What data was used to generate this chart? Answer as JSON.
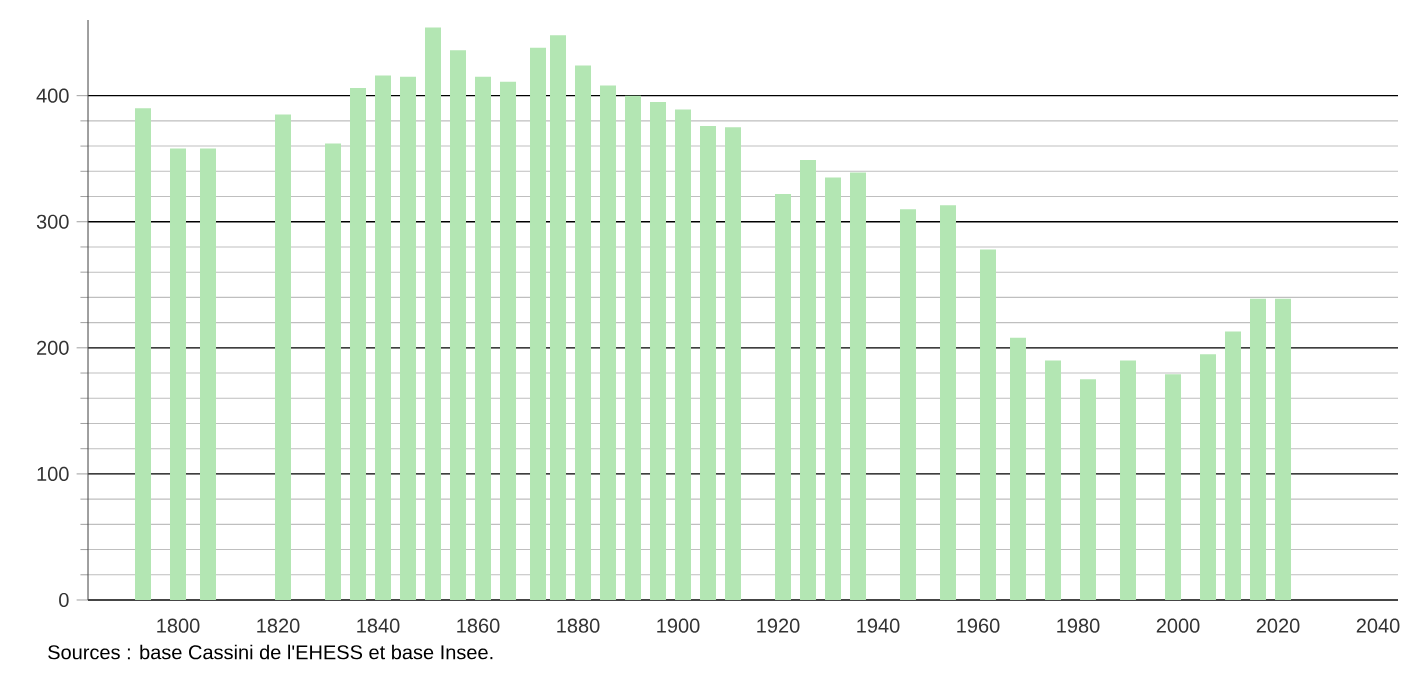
{
  "chart_data": {
    "type": "bar",
    "x": [
      1793,
      1800,
      1806,
      1821,
      1831,
      1836,
      1841,
      1846,
      1851,
      1856,
      1861,
      1866,
      1872,
      1876,
      1881,
      1886,
      1891,
      1896,
      1901,
      1906,
      1911,
      1921,
      1926,
      1931,
      1936,
      1946,
      1954,
      1962,
      1968,
      1975,
      1982,
      1990,
      1999,
      2006,
      2011,
      2016,
      2021
    ],
    "values": [
      390,
      358,
      358,
      385,
      362,
      406,
      416,
      415,
      454,
      436,
      415,
      411,
      438,
      448,
      424,
      408,
      400,
      395,
      389,
      376,
      375,
      322,
      349,
      335,
      339,
      310,
      313,
      278,
      208,
      190,
      175,
      190,
      179,
      195,
      213,
      239,
      239
    ],
    "color": "#b3e6b3",
    "xlim": [
      1782,
      2044
    ],
    "xticks": [
      1800,
      1820,
      1840,
      1860,
      1880,
      1900,
      1920,
      1940,
      1960,
      1980,
      2000,
      2020,
      2040
    ],
    "ylim": [
      0,
      460
    ],
    "yticks": [
      0,
      100,
      200,
      300,
      400
    ],
    "grid": "y",
    "annotations": [
      "Sources : base Cassini de l'EHESS et base Insee."
    ]
  }
}
